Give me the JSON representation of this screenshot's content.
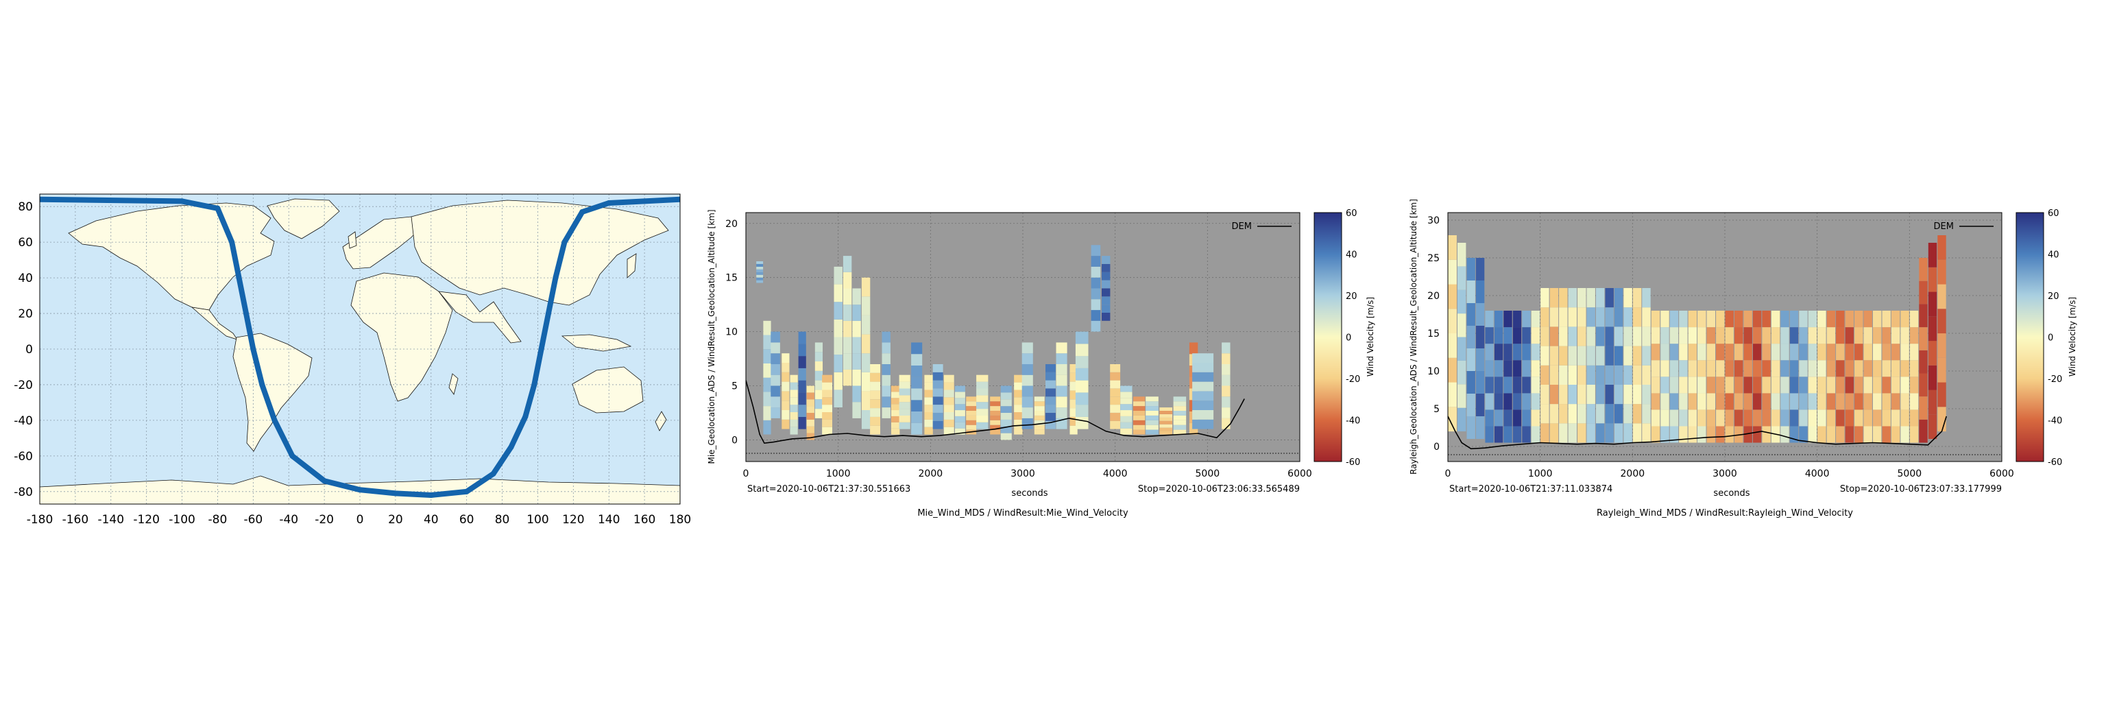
{
  "colors": {
    "ocean": "#cfe8f8",
    "land": "#fefce4",
    "track": "#1464ac",
    "plot_bg": "#9a9a9a",
    "grid": "#6e6e6e",
    "colormap": [
      "#a0252b",
      "#d8693f",
      "#f6d188",
      "#fbf9c2",
      "#a9cfe0",
      "#4a7fbd",
      "#2a3282"
    ]
  },
  "chart_data": [
    {
      "id": "map",
      "type": "scatter",
      "title": "",
      "xlabel": "",
      "ylabel": "",
      "xlim": [
        -180,
        180
      ],
      "ylim": [
        -87,
        87
      ],
      "grid": true,
      "xticks": [
        -180,
        -160,
        -140,
        -120,
        -100,
        -80,
        -60,
        -40,
        -20,
        0,
        20,
        40,
        60,
        80,
        100,
        120,
        140,
        160,
        180
      ],
      "yticks": [
        -80,
        -60,
        -40,
        -20,
        0,
        20,
        40,
        60,
        80
      ],
      "tick_labels_x": [
        "-180",
        "-160",
        "-140",
        "-120",
        "-100",
        "-80",
        "-60",
        "-40",
        "-20",
        "0",
        "20",
        "40",
        "60",
        "80",
        "100",
        "120",
        "140",
        "160",
        "180"
      ],
      "tick_labels_y": [
        "-80",
        "-60",
        "-40",
        "-20",
        "0",
        "20",
        "40",
        "60",
        "80"
      ],
      "series": [
        {
          "x": [
            -180,
            -100,
            -80,
            -72,
            -68,
            -64,
            -60,
            -55,
            -48,
            -38,
            -20,
            0,
            20,
            40,
            60,
            75,
            85,
            93,
            98,
            102,
            106,
            110,
            115,
            125,
            140,
            160,
            180
          ],
          "y": [
            84,
            83,
            79,
            60,
            40,
            20,
            0,
            -20,
            -40,
            -60,
            -74,
            -79,
            -81,
            -82,
            -80,
            -70,
            -55,
            -38,
            -20,
            0,
            20,
            40,
            60,
            77,
            82,
            83,
            84
          ]
        }
      ]
    },
    {
      "id": "mie",
      "type": "heatmap",
      "title": "",
      "xlabel": "seconds",
      "ylabel": "Mie_Geolocation_ADS / WindResult_Geolocation_Altitude [km]",
      "caption": "Mie_Wind_MDS / WindResult:Mie_Wind_Velocity",
      "start_label": "Start=2020-10-06T21:37:30.551663",
      "stop_label": "Stop=2020-10-06T23:06:33.565489",
      "xlim": [
        0,
        6000
      ],
      "ylim": [
        -2,
        21
      ],
      "xticks": [
        0,
        1000,
        2000,
        3000,
        4000,
        5000,
        6000
      ],
      "yticks": [
        0,
        5,
        10,
        15,
        20
      ],
      "tick_labels_x": [
        "0",
        "1000",
        "2000",
        "3000",
        "4000",
        "5000",
        "6000"
      ],
      "tick_labels_y": [
        "0",
        "5",
        "10",
        "15",
        "20"
      ],
      "legend": {
        "entries": [
          "DEM"
        ],
        "placement": "top-right"
      },
      "colorbar": {
        "label": "Wind Velocity [m/s]",
        "range": [
          -60,
          60
        ],
        "ticks": [
          60,
          40,
          20,
          0,
          -20,
          -40,
          -60
        ],
        "tick_labels": [
          "60",
          "40",
          "20",
          "0",
          "-20",
          "-40",
          "-60"
        ]
      },
      "grid": true,
      "columns": [
        {
          "x": 150,
          "y0": 14.5,
          "y1": 16.5,
          "v": 25
        },
        {
          "x": 230,
          "y0": 0.5,
          "y1": 11,
          "v": 15
        },
        {
          "x": 320,
          "y0": 2,
          "y1": 10,
          "v": 25
        },
        {
          "x": 430,
          "y0": 1,
          "y1": 8,
          "v": -10
        },
        {
          "x": 520,
          "y0": 0.5,
          "y1": 6,
          "v": 5
        },
        {
          "x": 610,
          "y0": 1,
          "y1": 10,
          "v": 45
        },
        {
          "x": 700,
          "y0": 0,
          "y1": 5,
          "v": -18
        },
        {
          "x": 790,
          "y0": 2,
          "y1": 9,
          "v": 8
        },
        {
          "x": 880,
          "y0": 0.5,
          "y1": 6,
          "v": -12
        },
        {
          "x": 1000,
          "y0": 3,
          "y1": 16,
          "v": 10
        },
        {
          "x": 1100,
          "y0": 5,
          "y1": 17,
          "v": 4
        },
        {
          "x": 1200,
          "y0": 2,
          "y1": 14,
          "v": 12
        },
        {
          "x": 1300,
          "y0": 1,
          "y1": 15,
          "v": 2
        },
        {
          "x": 1400,
          "y0": 0.5,
          "y1": 7,
          "v": -8
        },
        {
          "x": 1520,
          "y0": 2,
          "y1": 10,
          "v": 20
        },
        {
          "x": 1620,
          "y0": 0.5,
          "y1": 5,
          "v": -15
        },
        {
          "x": 1720,
          "y0": 1,
          "y1": 6,
          "v": 5
        },
        {
          "x": 1850,
          "y0": 0.5,
          "y1": 9,
          "v": 28
        },
        {
          "x": 1980,
          "y0": 0.5,
          "y1": 6,
          "v": -10
        },
        {
          "x": 2080,
          "y0": 1,
          "y1": 7,
          "v": 32
        },
        {
          "x": 2200,
          "y0": 0.5,
          "y1": 6,
          "v": -5
        },
        {
          "x": 2320,
          "y0": 0.5,
          "y1": 5,
          "v": 14
        },
        {
          "x": 2440,
          "y0": 0.5,
          "y1": 4,
          "v": -20
        },
        {
          "x": 2560,
          "y0": 1,
          "y1": 6,
          "v": 6
        },
        {
          "x": 2700,
          "y0": 0.5,
          "y1": 4,
          "v": -25
        },
        {
          "x": 2820,
          "y0": 0,
          "y1": 5,
          "v": 18
        },
        {
          "x": 2950,
          "y0": 0.5,
          "y1": 6,
          "v": -12
        },
        {
          "x": 3050,
          "y0": 1,
          "y1": 9,
          "v": 22
        },
        {
          "x": 3180,
          "y0": 0.5,
          "y1": 4,
          "v": -6
        },
        {
          "x": 3300,
          "y0": 1,
          "y1": 7,
          "v": 35
        },
        {
          "x": 3420,
          "y0": 1,
          "y1": 9,
          "v": 10
        },
        {
          "x": 3550,
          "y0": 0.5,
          "y1": 7,
          "v": -10
        },
        {
          "x": 3640,
          "y0": 1,
          "y1": 10,
          "v": 12
        },
        {
          "x": 3790,
          "y0": 10,
          "y1": 18,
          "v": 28
        },
        {
          "x": 3900,
          "y0": 11,
          "y1": 17,
          "v": 42
        },
        {
          "x": 4000,
          "y0": 1,
          "y1": 7,
          "v": -15
        },
        {
          "x": 4120,
          "y0": 0.5,
          "y1": 5,
          "v": 8
        },
        {
          "x": 4260,
          "y0": 0.5,
          "y1": 4,
          "v": -25
        },
        {
          "x": 4400,
          "y0": 0.5,
          "y1": 4,
          "v": 12
        },
        {
          "x": 4550,
          "y0": 0.5,
          "y1": 3,
          "v": -18
        },
        {
          "x": 4700,
          "y0": 0.5,
          "y1": 4,
          "v": 5
        },
        {
          "x": 4850,
          "y0": 0.5,
          "y1": 9,
          "v": -28
        },
        {
          "x": 4950,
          "y0": 1,
          "y1": 8,
          "v": 22
        },
        {
          "x": 5200,
          "y0": 1,
          "y1": 9,
          "v": 2
        }
      ],
      "dem": {
        "x": [
          0,
          80,
          150,
          200,
          300,
          500,
          700,
          900,
          1100,
          1300,
          1500,
          1700,
          1900,
          2100,
          2300,
          2500,
          2700,
          2900,
          3100,
          3300,
          3500,
          3700,
          3900,
          4100,
          4300,
          4500,
          4700,
          4900,
          5100,
          5250,
          5350,
          5400
        ],
        "y": [
          5.5,
          3,
          0.5,
          -0.3,
          -0.2,
          0.1,
          0.2,
          0.5,
          0.6,
          0.4,
          0.3,
          0.4,
          0.3,
          0.4,
          0.6,
          0.8,
          1.0,
          1.3,
          1.4,
          1.6,
          2.0,
          1.7,
          0.8,
          0.4,
          0.3,
          0.4,
          0.5,
          0.6,
          0.2,
          1.5,
          3.0,
          3.8
        ]
      }
    },
    {
      "id": "rayleigh",
      "type": "heatmap",
      "title": "",
      "xlabel": "seconds",
      "ylabel": "Rayleigh_Geolocation_ADS / WindResult_Geolocation_Altitude [km]",
      "caption": "Rayleigh_Wind_MDS / WindResult:Rayleigh_Wind_Velocity",
      "start_label": "Start=2020-10-06T21:37:11.033874",
      "stop_label": "Stop=2020-10-06T23:07:33.177999",
      "xlim": [
        0,
        6000
      ],
      "ylim": [
        -2,
        31
      ],
      "xticks": [
        0,
        1000,
        2000,
        3000,
        4000,
        5000,
        6000
      ],
      "yticks": [
        0,
        5,
        10,
        15,
        20,
        25,
        30
      ],
      "tick_labels_x": [
        "0",
        "1000",
        "2000",
        "3000",
        "4000",
        "5000",
        "6000"
      ],
      "tick_labels_y": [
        "0",
        "5",
        "10",
        "15",
        "20",
        "25",
        "30"
      ],
      "legend": {
        "entries": [
          "DEM"
        ],
        "placement": "top-right"
      },
      "colorbar": {
        "label": "Wind Velocity [m/s]",
        "range": [
          -60,
          60
        ],
        "ticks": [
          60,
          40,
          20,
          0,
          -20,
          -40,
          -60
        ],
        "tick_labels": [
          "60",
          "40",
          "20",
          "0",
          "-20",
          "-40",
          "-60"
        ]
      },
      "grid": true,
      "columns": [
        {
          "x": 50,
          "y0": 2,
          "y1": 28,
          "v": -10
        },
        {
          "x": 150,
          "y0": 2,
          "y1": 27,
          "v": 15
        },
        {
          "x": 250,
          "y0": 1,
          "y1": 25,
          "v": 30
        },
        {
          "x": 350,
          "y0": 1,
          "y1": 25,
          "v": 40
        },
        {
          "x": 450,
          "y0": 0.5,
          "y1": 18,
          "v": 35
        },
        {
          "x": 550,
          "y0": 0.5,
          "y1": 18,
          "v": 45
        },
        {
          "x": 650,
          "y0": 0.5,
          "y1": 18,
          "v": 50
        },
        {
          "x": 750,
          "y0": 0.5,
          "y1": 18,
          "v": 55
        },
        {
          "x": 850,
          "y0": 0.5,
          "y1": 18,
          "v": 40
        },
        {
          "x": 950,
          "y0": 0.5,
          "y1": 18,
          "v": 5
        },
        {
          "x": 1050,
          "y0": 0.5,
          "y1": 21,
          "v": -12
        },
        {
          "x": 1150,
          "y0": 0.5,
          "y1": 21,
          "v": -18
        },
        {
          "x": 1250,
          "y0": 0.5,
          "y1": 21,
          "v": -8
        },
        {
          "x": 1350,
          "y0": 0.5,
          "y1": 21,
          "v": 8
        },
        {
          "x": 1450,
          "y0": 0.5,
          "y1": 21,
          "v": -5
        },
        {
          "x": 1550,
          "y0": 0.5,
          "y1": 21,
          "v": 15
        },
        {
          "x": 1650,
          "y0": 0.5,
          "y1": 21,
          "v": 25
        },
        {
          "x": 1750,
          "y0": 0.5,
          "y1": 21,
          "v": 40
        },
        {
          "x": 1850,
          "y0": 0.5,
          "y1": 21,
          "v": 30
        },
        {
          "x": 1950,
          "y0": 0.5,
          "y1": 21,
          "v": 10
        },
        {
          "x": 2050,
          "y0": 0.5,
          "y1": 21,
          "v": -10
        },
        {
          "x": 2150,
          "y0": 0.5,
          "y1": 21,
          "v": 5
        },
        {
          "x": 2250,
          "y0": 0.5,
          "y1": 18,
          "v": -15
        },
        {
          "x": 2350,
          "y0": 0.5,
          "y1": 18,
          "v": 8
        },
        {
          "x": 2450,
          "y0": 0.5,
          "y1": 18,
          "v": 18
        },
        {
          "x": 2550,
          "y0": 0.5,
          "y1": 18,
          "v": 5
        },
        {
          "x": 2650,
          "y0": 0.5,
          "y1": 18,
          "v": -12
        },
        {
          "x": 2750,
          "y0": 0.5,
          "y1": 18,
          "v": -5
        },
        {
          "x": 2850,
          "y0": 0.5,
          "y1": 18,
          "v": -20
        },
        {
          "x": 2950,
          "y0": 0.5,
          "y1": 18,
          "v": -25
        },
        {
          "x": 3050,
          "y0": 0.5,
          "y1": 18,
          "v": -30
        },
        {
          "x": 3150,
          "y0": 0.5,
          "y1": 18,
          "v": -35
        },
        {
          "x": 3250,
          "y0": 0.5,
          "y1": 18,
          "v": -40
        },
        {
          "x": 3350,
          "y0": 0.5,
          "y1": 18,
          "v": -45
        },
        {
          "x": 3450,
          "y0": 0.5,
          "y1": 18,
          "v": -30
        },
        {
          "x": 3550,
          "y0": 0.5,
          "y1": 18,
          "v": -5
        },
        {
          "x": 3650,
          "y0": 0.5,
          "y1": 18,
          "v": 20
        },
        {
          "x": 3750,
          "y0": 0.5,
          "y1": 18,
          "v": 35
        },
        {
          "x": 3850,
          "y0": 0.5,
          "y1": 18,
          "v": 25
        },
        {
          "x": 3950,
          "y0": 0.5,
          "y1": 18,
          "v": 5
        },
        {
          "x": 4050,
          "y0": 0.5,
          "y1": 18,
          "v": -10
        },
        {
          "x": 4150,
          "y0": 0.5,
          "y1": 18,
          "v": -25
        },
        {
          "x": 4250,
          "y0": 0.5,
          "y1": 18,
          "v": -35
        },
        {
          "x": 4350,
          "y0": 0.5,
          "y1": 18,
          "v": -40
        },
        {
          "x": 4450,
          "y0": 0.5,
          "y1": 18,
          "v": -30
        },
        {
          "x": 4550,
          "y0": 0.5,
          "y1": 18,
          "v": -20
        },
        {
          "x": 4650,
          "y0": 0.5,
          "y1": 18,
          "v": -15
        },
        {
          "x": 4750,
          "y0": 0.5,
          "y1": 18,
          "v": -25
        },
        {
          "x": 4850,
          "y0": 0.5,
          "y1": 18,
          "v": -20
        },
        {
          "x": 4950,
          "y0": 0.5,
          "y1": 18,
          "v": -10
        },
        {
          "x": 5050,
          "y0": 0.5,
          "y1": 18,
          "v": -15
        },
        {
          "x": 5150,
          "y0": 0.5,
          "y1": 25,
          "v": -45
        },
        {
          "x": 5250,
          "y0": 1,
          "y1": 27,
          "v": -55
        },
        {
          "x": 5350,
          "y0": 2,
          "y1": 28,
          "v": -35
        }
      ],
      "dem": {
        "x": [
          0,
          80,
          150,
          250,
          400,
          600,
          800,
          1000,
          1200,
          1400,
          1600,
          1800,
          2000,
          2200,
          2400,
          2600,
          2800,
          3000,
          3200,
          3400,
          3600,
          3800,
          4000,
          4200,
          4400,
          4600,
          4800,
          5000,
          5200,
          5350,
          5400
        ],
        "y": [
          4,
          2,
          0.5,
          -0.3,
          -0.2,
          0.1,
          0.3,
          0.5,
          0.4,
          0.3,
          0.4,
          0.3,
          0.5,
          0.6,
          0.8,
          1.0,
          1.2,
          1.3,
          1.6,
          2.0,
          1.5,
          0.8,
          0.5,
          0.3,
          0.4,
          0.5,
          0.4,
          0.3,
          0.2,
          2.0,
          4.0
        ]
      }
    }
  ]
}
